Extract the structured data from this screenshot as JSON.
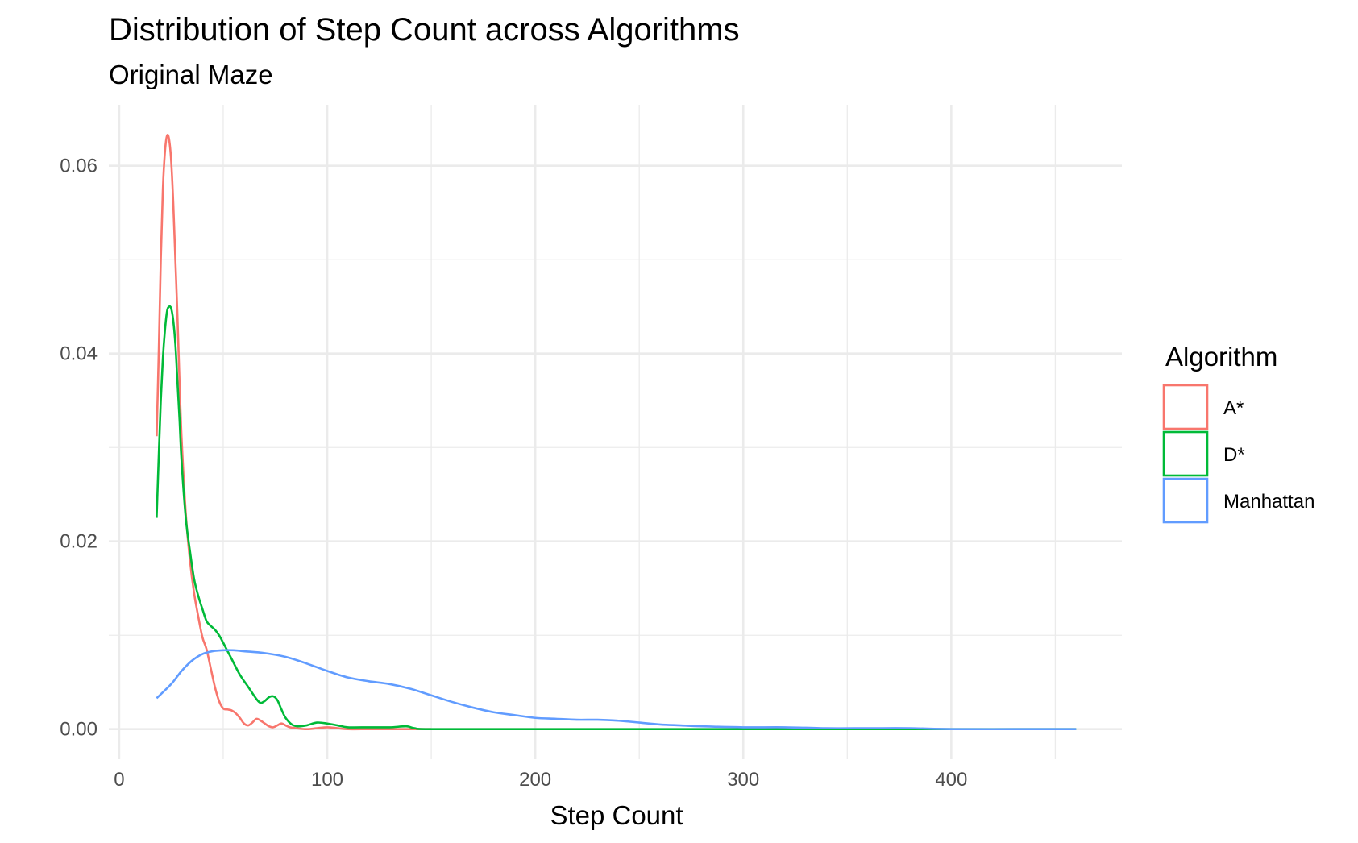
{
  "chart_data": {
    "type": "line",
    "title": "Distribution of Step Count across Algorithms",
    "subtitle": "Original Maze",
    "xlabel": "Step Count",
    "ylabel": "",
    "xlim": [
      -5,
      482
    ],
    "ylim": [
      -0.0032,
      0.0665
    ],
    "x_ticks": [
      0,
      100,
      200,
      300,
      400
    ],
    "x_tick_labels": [
      "0",
      "100",
      "200",
      "300",
      "400"
    ],
    "x_minor_ticks": [
      50,
      150,
      250,
      350,
      450
    ],
    "y_ticks": [
      0,
      0.02,
      0.04,
      0.06
    ],
    "y_tick_labels": [
      "0.00",
      "0.02",
      "0.04",
      "0.06"
    ],
    "y_minor_ticks": [
      0.01,
      0.03,
      0.05
    ],
    "grid": true,
    "legend": {
      "title": "Algorithm",
      "position": "right"
    },
    "series": [
      {
        "name": "A*",
        "color": "#F8766D",
        "points": [
          [
            18,
            0.0312
          ],
          [
            19,
            0.04
          ],
          [
            20,
            0.05
          ],
          [
            21,
            0.0575
          ],
          [
            22,
            0.0615
          ],
          [
            23,
            0.0632
          ],
          [
            24,
            0.0628
          ],
          [
            25,
            0.0605
          ],
          [
            26,
            0.056
          ],
          [
            27,
            0.05
          ],
          [
            28,
            0.044
          ],
          [
            29,
            0.037
          ],
          [
            30,
            0.031
          ],
          [
            32,
            0.023
          ],
          [
            34,
            0.018
          ],
          [
            36,
            0.0145
          ],
          [
            38,
            0.012
          ],
          [
            40,
            0.0098
          ],
          [
            42,
            0.0085
          ],
          [
            44,
            0.0065
          ],
          [
            46,
            0.0045
          ],
          [
            48,
            0.003
          ],
          [
            50,
            0.0022
          ],
          [
            52,
            0.0021
          ],
          [
            54,
            0.002
          ],
          [
            56,
            0.0017
          ],
          [
            58,
            0.0012
          ],
          [
            60,
            0.0006
          ],
          [
            62,
            0.0004
          ],
          [
            64,
            0.0007
          ],
          [
            66,
            0.0011
          ],
          [
            68,
            0.0009
          ],
          [
            70,
            0.0006
          ],
          [
            72,
            0.0003
          ],
          [
            74,
            0.0002
          ],
          [
            76,
            0.0004
          ],
          [
            78,
            0.0006
          ],
          [
            80,
            0.0004
          ],
          [
            82,
            0.0002
          ],
          [
            85,
            0.0001
          ],
          [
            90,
            0.0
          ],
          [
            95,
            0.0001
          ],
          [
            100,
            0.0002
          ],
          [
            105,
            0.0001
          ],
          [
            110,
            0.0
          ],
          [
            120,
            0.0
          ],
          [
            130,
            0.0
          ],
          [
            140,
            0.0
          ],
          [
            150,
            0.0
          ]
        ]
      },
      {
        "name": "D*",
        "color": "#00BA38",
        "points": [
          [
            18,
            0.0225
          ],
          [
            19,
            0.029
          ],
          [
            20,
            0.035
          ],
          [
            21,
            0.0395
          ],
          [
            22,
            0.0425
          ],
          [
            23,
            0.0445
          ],
          [
            24,
            0.045
          ],
          [
            25,
            0.0448
          ],
          [
            26,
            0.0435
          ],
          [
            27,
            0.041
          ],
          [
            28,
            0.037
          ],
          [
            29,
            0.033
          ],
          [
            30,
            0.0285
          ],
          [
            32,
            0.0225
          ],
          [
            34,
            0.019
          ],
          [
            36,
            0.016
          ],
          [
            38,
            0.0142
          ],
          [
            40,
            0.0128
          ],
          [
            42,
            0.0115
          ],
          [
            44,
            0.011
          ],
          [
            46,
            0.0106
          ],
          [
            48,
            0.01
          ],
          [
            50,
            0.0092
          ],
          [
            54,
            0.0075
          ],
          [
            58,
            0.0058
          ],
          [
            62,
            0.0045
          ],
          [
            66,
            0.0032
          ],
          [
            68,
            0.0028
          ],
          [
            70,
            0.003
          ],
          [
            72,
            0.0034
          ],
          [
            74,
            0.0035
          ],
          [
            76,
            0.0031
          ],
          [
            78,
            0.0021
          ],
          [
            80,
            0.0012
          ],
          [
            83,
            0.0005
          ],
          [
            86,
            0.0003
          ],
          [
            90,
            0.0004
          ],
          [
            95,
            0.0007
          ],
          [
            100,
            0.0006
          ],
          [
            105,
            0.0004
          ],
          [
            110,
            0.0002
          ],
          [
            120,
            0.0002
          ],
          [
            130,
            0.0002
          ],
          [
            138,
            0.0003
          ],
          [
            142,
            0.0001
          ],
          [
            150,
            0.0
          ],
          [
            200,
            0.0
          ],
          [
            300,
            0.0
          ],
          [
            460,
            0.0
          ]
        ]
      },
      {
        "name": "Manhattan",
        "color": "#619CFF",
        "points": [
          [
            18,
            0.0033
          ],
          [
            25,
            0.0048
          ],
          [
            30,
            0.0062
          ],
          [
            35,
            0.0073
          ],
          [
            40,
            0.008
          ],
          [
            45,
            0.0083
          ],
          [
            50,
            0.0084
          ],
          [
            55,
            0.0084
          ],
          [
            60,
            0.0083
          ],
          [
            70,
            0.0081
          ],
          [
            80,
            0.0077
          ],
          [
            90,
            0.007
          ],
          [
            100,
            0.0062
          ],
          [
            110,
            0.0055
          ],
          [
            120,
            0.0051
          ],
          [
            130,
            0.0048
          ],
          [
            140,
            0.0043
          ],
          [
            150,
            0.0036
          ],
          [
            160,
            0.0029
          ],
          [
            170,
            0.0023
          ],
          [
            180,
            0.0018
          ],
          [
            190,
            0.0015
          ],
          [
            200,
            0.0012
          ],
          [
            210,
            0.0011
          ],
          [
            220,
            0.001
          ],
          [
            230,
            0.001
          ],
          [
            240,
            0.0009
          ],
          [
            250,
            0.0007
          ],
          [
            260,
            0.0005
          ],
          [
            270,
            0.0004
          ],
          [
            280,
            0.0003
          ],
          [
            300,
            0.0002
          ],
          [
            320,
            0.0002
          ],
          [
            340,
            0.0001
          ],
          [
            360,
            0.0001
          ],
          [
            380,
            0.0001
          ],
          [
            400,
            0.0
          ],
          [
            430,
            0.0
          ],
          [
            460,
            0.0
          ]
        ]
      }
    ]
  }
}
